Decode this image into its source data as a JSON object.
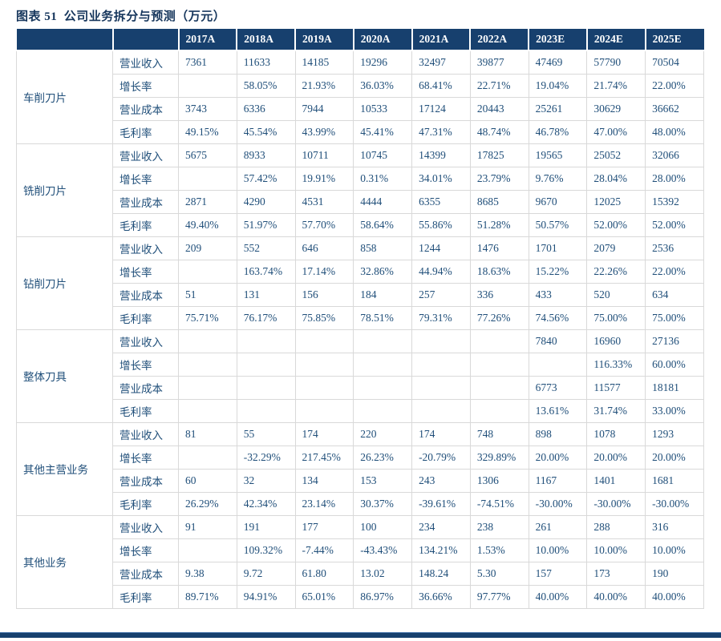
{
  "title": {
    "label": "图表 51  公司业务拆分与预测（万元）"
  },
  "table": {
    "columns": [
      "2017A",
      "2018A",
      "2019A",
      "2020A",
      "2021A",
      "2022A",
      "2023E",
      "2024E",
      "2025E"
    ],
    "groups": [
      {
        "name": "车削刀片",
        "rows": [
          {
            "metric": "营业收入",
            "values": [
              "7361",
              "11633",
              "14185",
              "19296",
              "32497",
              "39877",
              "47469",
              "57790",
              "70504"
            ]
          },
          {
            "metric": "增长率",
            "values": [
              "",
              "58.05%",
              "21.93%",
              "36.03%",
              "68.41%",
              "22.71%",
              "19.04%",
              "21.74%",
              "22.00%"
            ]
          },
          {
            "metric": "营业成本",
            "values": [
              "3743",
              "6336",
              "7944",
              "10533",
              "17124",
              "20443",
              "25261",
              "30629",
              "36662"
            ]
          },
          {
            "metric": "毛利率",
            "values": [
              "49.15%",
              "45.54%",
              "43.99%",
              "45.41%",
              "47.31%",
              "48.74%",
              "46.78%",
              "47.00%",
              "48.00%"
            ]
          }
        ]
      },
      {
        "name": "铣削刀片",
        "rows": [
          {
            "metric": "营业收入",
            "values": [
              "5675",
              "8933",
              "10711",
              "10745",
              "14399",
              "17825",
              "19565",
              "25052",
              "32066"
            ]
          },
          {
            "metric": "增长率",
            "values": [
              "",
              "57.42%",
              "19.91%",
              "0.31%",
              "34.01%",
              "23.79%",
              "9.76%",
              "28.04%",
              "28.00%"
            ]
          },
          {
            "metric": "营业成本",
            "values": [
              "2871",
              "4290",
              "4531",
              "4444",
              "6355",
              "8685",
              "9670",
              "12025",
              "15392"
            ]
          },
          {
            "metric": "毛利率",
            "values": [
              "49.40%",
              "51.97%",
              "57.70%",
              "58.64%",
              "55.86%",
              "51.28%",
              "50.57%",
              "52.00%",
              "52.00%"
            ]
          }
        ]
      },
      {
        "name": "钻削刀片",
        "rows": [
          {
            "metric": "营业收入",
            "values": [
              "209",
              "552",
              "646",
              "858",
              "1244",
              "1476",
              "1701",
              "2079",
              "2536"
            ]
          },
          {
            "metric": "增长率",
            "values": [
              "",
              "163.74%",
              "17.14%",
              "32.86%",
              "44.94%",
              "18.63%",
              "15.22%",
              "22.26%",
              "22.00%"
            ]
          },
          {
            "metric": "营业成本",
            "values": [
              "51",
              "131",
              "156",
              "184",
              "257",
              "336",
              "433",
              "520",
              "634"
            ]
          },
          {
            "metric": "毛利率",
            "values": [
              "75.71%",
              "76.17%",
              "75.85%",
              "78.51%",
              "79.31%",
              "77.26%",
              "74.56%",
              "75.00%",
              "75.00%"
            ]
          }
        ]
      },
      {
        "name": "整体刀具",
        "rows": [
          {
            "metric": "营业收入",
            "values": [
              "",
              "",
              "",
              "",
              "",
              "",
              "7840",
              "16960",
              "27136"
            ]
          },
          {
            "metric": "增长率",
            "values": [
              "",
              "",
              "",
              "",
              "",
              "",
              "",
              "116.33%",
              "60.00%"
            ]
          },
          {
            "metric": "营业成本",
            "values": [
              "",
              "",
              "",
              "",
              "",
              "",
              "6773",
              "11577",
              "18181"
            ]
          },
          {
            "metric": "毛利率",
            "values": [
              "",
              "",
              "",
              "",
              "",
              "",
              "13.61%",
              "31.74%",
              "33.00%"
            ]
          }
        ]
      },
      {
        "name": "其他主营业务",
        "rows": [
          {
            "metric": "营业收入",
            "values": [
              "81",
              "55",
              "174",
              "220",
              "174",
              "748",
              "898",
              "1078",
              "1293"
            ]
          },
          {
            "metric": "增长率",
            "values": [
              "",
              "-32.29%",
              "217.45%",
              "26.23%",
              "-20.79%",
              "329.89%",
              "20.00%",
              "20.00%",
              "20.00%"
            ]
          },
          {
            "metric": "营业成本",
            "values": [
              "60",
              "32",
              "134",
              "153",
              "243",
              "1306",
              "1167",
              "1401",
              "1681"
            ]
          },
          {
            "metric": "毛利率",
            "values": [
              "26.29%",
              "42.34%",
              "23.14%",
              "30.37%",
              "-39.61%",
              "-74.51%",
              "-30.00%",
              "-30.00%",
              "-30.00%"
            ]
          }
        ]
      },
      {
        "name": "其他业务",
        "rows": [
          {
            "metric": "营业收入",
            "values": [
              "91",
              "191",
              "177",
              "100",
              "234",
              "238",
              "261",
              "288",
              "316"
            ]
          },
          {
            "metric": "增长率",
            "values": [
              "",
              "109.32%",
              "-7.44%",
              "-43.43%",
              "134.21%",
              "1.53%",
              "10.00%",
              "10.00%",
              "10.00%"
            ]
          },
          {
            "metric": "营业成本",
            "values": [
              "9.38",
              "9.72",
              "61.80",
              "13.02",
              "148.24",
              "5.30",
              "157",
              "173",
              "190"
            ]
          },
          {
            "metric": "毛利率",
            "values": [
              "89.71%",
              "94.91%",
              "65.01%",
              "86.97%",
              "36.66%",
              "97.77%",
              "40.00%",
              "40.00%",
              "40.00%"
            ]
          }
        ]
      }
    ]
  },
  "colors": {
    "header_bg": "#17406E",
    "cell_text": "#1F4E79",
    "title_text": "#16365C",
    "grid_border": "#D9D9D9",
    "footer_bar": "#17406E"
  }
}
